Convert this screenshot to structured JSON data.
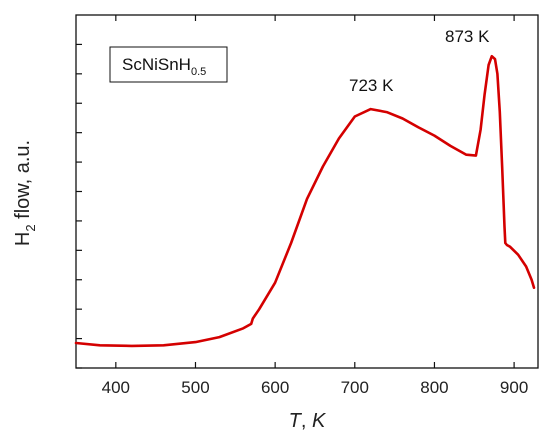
{
  "chart_data": {
    "type": "line",
    "xlabel_italic": "T",
    "xlabel_unit": "K",
    "ylabel_main": "H",
    "ylabel_sub": "2",
    "ylabel_rest": " flow, a.u.",
    "xlim": [
      350,
      930
    ],
    "ylim": [
      0,
      1.2
    ],
    "x_ticks": [
      400,
      500,
      600,
      700,
      800,
      900
    ],
    "y_tick_values": [
      0.0,
      0.1,
      0.2,
      0.3,
      0.4,
      0.5,
      0.6,
      0.7,
      0.8,
      0.9,
      1.0,
      1.1
    ],
    "legend": {
      "main": "ScNiSnH",
      "sub": "0.5"
    },
    "annotations": [
      {
        "text": "723 K",
        "x": 723,
        "y": 0.98
      },
      {
        "text": "873 K",
        "x": 873,
        "y": 1.11
      }
    ],
    "line_color": "#d40000",
    "series": [
      {
        "x": [
          350,
          380,
          420,
          460,
          500,
          530,
          560,
          570,
          572,
          580,
          600,
          620,
          640,
          660,
          680,
          700,
          720,
          740,
          760,
          780,
          800,
          820,
          840,
          852,
          858,
          863,
          868,
          872,
          876,
          879,
          882,
          885,
          887,
          888,
          889,
          891,
          895,
          905,
          915,
          922,
          925
        ],
        "y": [
          0.085,
          0.077,
          0.075,
          0.077,
          0.088,
          0.105,
          0.135,
          0.15,
          0.168,
          0.2,
          0.29,
          0.425,
          0.575,
          0.685,
          0.78,
          0.855,
          0.88,
          0.87,
          0.848,
          0.818,
          0.79,
          0.755,
          0.725,
          0.722,
          0.81,
          0.93,
          1.03,
          1.06,
          1.05,
          1.0,
          0.87,
          0.68,
          0.55,
          0.48,
          0.425,
          0.418,
          0.412,
          0.385,
          0.345,
          0.3,
          0.273
        ]
      }
    ]
  }
}
